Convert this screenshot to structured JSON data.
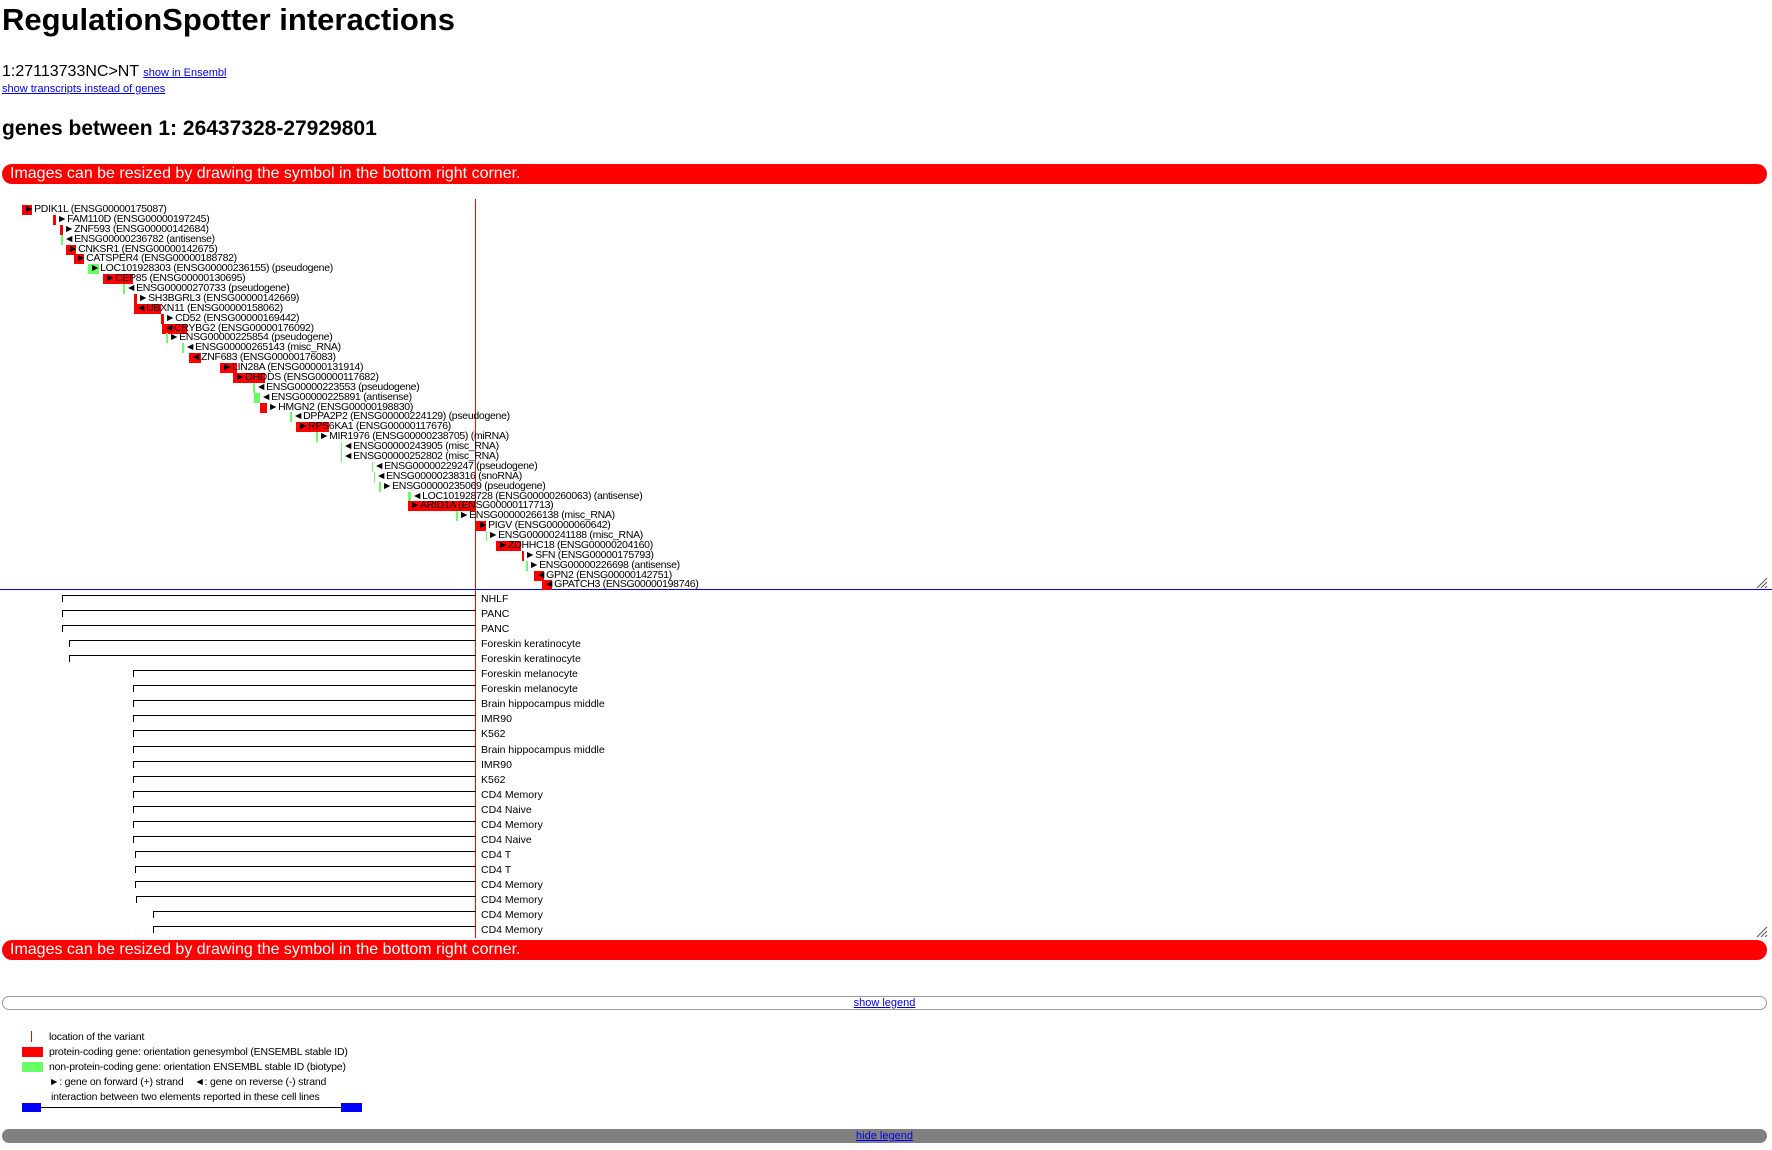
{
  "page": {
    "title": "RegulationSpotter interactions",
    "variant": "1:27113733NC>NT",
    "show_in_ensembl": "show in Ensembl",
    "show_transcripts": "show transcripts instead of genes",
    "genes_heading": "genes between 1: 26437328-27929801",
    "resize_note": "Images can be resized by drawing the symbol in the bottom right corner."
  },
  "colors": {
    "protein_coding": "#ff0000",
    "non_protein_coding": "#66ff66",
    "interaction": "#0000ff",
    "variant": "#ff0000"
  },
  "genes": [
    {
      "label": "PDIK1L (ENSG00000175087)",
      "type": "protein",
      "strand": "+"
    },
    {
      "label": "FAM110D (ENSG00000197245)",
      "type": "protein",
      "strand": "+"
    },
    {
      "label": "ZNF593 (ENSG00000142684)",
      "type": "protein",
      "strand": "+"
    },
    {
      "label": "ENSG00000236782 (antisense)",
      "type": "noncoding",
      "strand": "-"
    },
    {
      "label": "CNKSR1 (ENSG00000142675)",
      "type": "protein",
      "strand": "+"
    },
    {
      "label": "CATSPER4 (ENSG00000188782)",
      "type": "protein",
      "strand": "+"
    },
    {
      "label": "LOC101928303 (ENSG00000236155) (pseudogene)",
      "type": "noncoding",
      "strand": "+"
    },
    {
      "label": "CEP85 (ENSG00000130695)",
      "type": "protein",
      "strand": "+"
    },
    {
      "label": "ENSG00000270733 (pseudogene)",
      "type": "noncoding",
      "strand": "-"
    },
    {
      "label": "SH3BGRL3 (ENSG00000142669)",
      "type": "protein",
      "strand": "+"
    },
    {
      "label": "UBXN11 (ENSG00000158062)",
      "type": "protein",
      "strand": "-"
    },
    {
      "label": "CD52 (ENSG00000169442)",
      "type": "protein",
      "strand": "+"
    },
    {
      "label": "CRYBG2 (ENSG00000176092)",
      "type": "protein",
      "strand": "-"
    },
    {
      "label": "ENSG00000225854 (pseudogene)",
      "type": "noncoding",
      "strand": "+"
    },
    {
      "label": "ENSG00000265143 (misc_RNA)",
      "type": "noncoding",
      "strand": "-"
    },
    {
      "label": "ZNF683 (ENSG00000176083)",
      "type": "protein",
      "strand": "-"
    },
    {
      "label": "LIN28A (ENSG00000131914)",
      "type": "protein",
      "strand": "+"
    },
    {
      "label": "DHDDS (ENSG00000117682)",
      "type": "protein",
      "strand": "+"
    },
    {
      "label": "ENSG00000223553 (pseudogene)",
      "type": "noncoding",
      "strand": "-"
    },
    {
      "label": "ENSG00000225891 (antisense)",
      "type": "noncoding",
      "strand": "-"
    },
    {
      "label": "HMGN2 (ENSG00000198830)",
      "type": "protein",
      "strand": "+"
    },
    {
      "label": "DPPA2P2 (ENSG00000224129) (pseudogene)",
      "type": "noncoding",
      "strand": "-"
    },
    {
      "label": "RPS6KA1 (ENSG00000117676)",
      "type": "protein",
      "strand": "+"
    },
    {
      "label": "MIR1976 (ENSG00000238705) (miRNA)",
      "type": "noncoding",
      "strand": "+"
    },
    {
      "label": "ENSG00000243905 (misc_RNA)",
      "type": "noncoding",
      "strand": "-"
    },
    {
      "label": "ENSG00000252802 (misc_RNA)",
      "type": "noncoding",
      "strand": "-"
    },
    {
      "label": "ENSG00000229247 (pseudogene)",
      "type": "noncoding",
      "strand": "-"
    },
    {
      "label": "ENSG00000238316 (snoRNA)",
      "type": "noncoding",
      "strand": "-"
    },
    {
      "label": "ENSG00000235069 (pseudogene)",
      "type": "noncoding",
      "strand": "+"
    },
    {
      "label": "LOC101928728 (ENSG00000260063) (antisense)",
      "type": "noncoding",
      "strand": "-"
    },
    {
      "label": "ARID1A (ENSG00000117713)",
      "type": "protein",
      "strand": "+"
    },
    {
      "label": "ENSG00000266138 (misc_RNA)",
      "type": "noncoding",
      "strand": "+"
    },
    {
      "label": "PIGV (ENSG00000060642)",
      "type": "protein",
      "strand": "+"
    },
    {
      "label": "ENSG00000241188 (misc_RNA)",
      "type": "noncoding",
      "strand": "+"
    },
    {
      "label": "ZDHHC18 (ENSG00000204160)",
      "type": "protein",
      "strand": "+"
    },
    {
      "label": "SFN (ENSG00000175793)",
      "type": "protein",
      "strand": "+"
    },
    {
      "label": "ENSG00000226698 (antisense)",
      "type": "noncoding",
      "strand": "+"
    },
    {
      "label": "GPN2 (ENSG00000142751)",
      "type": "protein",
      "strand": "-"
    },
    {
      "label": "GPATCH3 (ENSG00000198746)",
      "type": "protein",
      "strand": "-"
    }
  ],
  "cell_lines": [
    "NHLF",
    "PANC",
    "PANC",
    "Foreskin keratinocyte",
    "Foreskin keratinocyte",
    "Foreskin melanocyte",
    "Foreskin melanocyte",
    "Brain hippocampus middle",
    "IMR90",
    "K562",
    "Brain hippocampus middle",
    "IMR90",
    "K562",
    "CD4 Memory",
    "CD4 Naive",
    "CD4 Memory",
    "CD4 Naive",
    "CD4 T",
    "CD4 T",
    "CD4 Memory",
    "CD4 Memory",
    "CD4 Memory",
    "CD4 Memory"
  ],
  "legend": {
    "show_label": "show legend",
    "hide_label": "hide legend",
    "variant_location": "location of the variant",
    "protein_coding": "protein-coding gene: orientation genesymbol (ENSEMBL stable ID)",
    "non_protein_coding": "non-protein-coding gene: orientation ENSEMBL stable ID (biotype)",
    "strand": "►: gene on forward (+) strand    ◄: gene on reverse (-) strand",
    "interaction": "interaction between two elements reported in these cell lines"
  }
}
